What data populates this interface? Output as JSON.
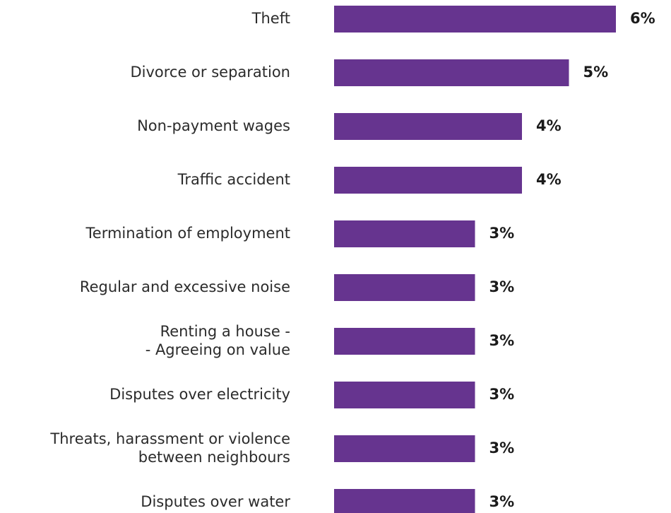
{
  "chart_data": {
    "type": "bar",
    "orientation": "horizontal",
    "categories": [
      "Theft",
      "Divorce or separation",
      "Non-payment wages",
      "Traffic accident",
      "Termination of employment",
      "Regular and excessive noise",
      "Renting a house -\n- Agreeing on value",
      "Disputes over electricity",
      "Threats, harassment or violence\nbetween neighbours",
      "Disputes over water"
    ],
    "values": [
      6,
      5,
      4,
      4,
      3,
      3,
      3,
      3,
      3,
      3
    ],
    "value_labels": [
      "6%",
      "5%",
      "4%",
      "4%",
      "3%",
      "3%",
      "3%",
      "3%",
      "3%",
      "3%"
    ],
    "bar_color": "#66348f",
    "xlim": [
      0,
      6
    ],
    "grid": false,
    "legend": "none"
  }
}
